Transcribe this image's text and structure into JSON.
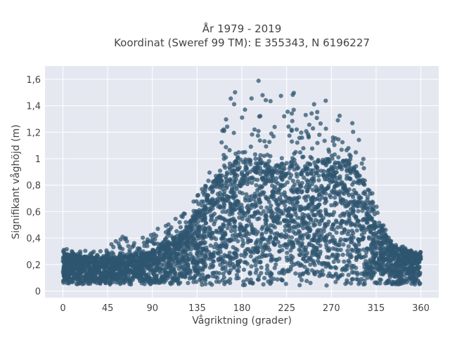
{
  "chart_data": {
    "type": "scatter",
    "title_line1": "År 1979 - 2019",
    "title_line2": "Koordinat (Sweref 99 TM): E 355343, N 6196227",
    "xlabel": "Vågriktning (grader)",
    "ylabel": "Signifikant våghöjd (m)",
    "xlim": [
      -18,
      378
    ],
    "ylim": [
      -0.05,
      1.7
    ],
    "x_ticks": [
      0,
      45,
      90,
      135,
      180,
      225,
      270,
      315,
      360
    ],
    "x_tick_labels": [
      "0",
      "45",
      "90",
      "135",
      "180",
      "225",
      "270",
      "315",
      "360"
    ],
    "y_ticks": [
      0,
      0.2,
      0.4,
      0.6,
      0.8,
      1.0,
      1.2,
      1.4,
      1.6
    ],
    "y_tick_labels": [
      "0",
      "0,2",
      "0,4",
      "0,6",
      "0,8",
      "1",
      "1,2",
      "1,4",
      "1,6"
    ],
    "marker_color": "#2f5670",
    "plot_bg": "#e5e8f0",
    "grid": true,
    "envelope": {
      "x": [
        0,
        10,
        30,
        45,
        60,
        75,
        90,
        105,
        120,
        135,
        150,
        165,
        180,
        195,
        210,
        225,
        240,
        255,
        270,
        285,
        300,
        315,
        330,
        345,
        360
      ],
      "y_min": [
        0.05,
        0.05,
        0.05,
        0.05,
        0.05,
        0.05,
        0.05,
        0.05,
        0.05,
        0.05,
        0.04,
        0.04,
        0.04,
        0.04,
        0.04,
        0.04,
        0.04,
        0.04,
        0.04,
        0.04,
        0.04,
        0.05,
        0.05,
        0.05,
        0.05
      ],
      "y_dense": [
        0.28,
        0.27,
        0.25,
        0.25,
        0.26,
        0.28,
        0.3,
        0.36,
        0.45,
        0.58,
        0.8,
        0.95,
        1.0,
        0.98,
        0.95,
        0.95,
        0.95,
        0.98,
        1.0,
        0.98,
        0.85,
        0.55,
        0.35,
        0.3,
        0.28
      ],
      "y_sparse": [
        0.33,
        0.31,
        0.3,
        0.33,
        0.43,
        0.42,
        0.47,
        0.5,
        0.6,
        0.76,
        0.95,
        1.45,
        1.62,
        1.62,
        1.5,
        1.62,
        1.4,
        1.45,
        1.58,
        1.4,
        1.1,
        0.65,
        0.38,
        0.33,
        0.3
      ]
    },
    "point_count": 4200
  }
}
